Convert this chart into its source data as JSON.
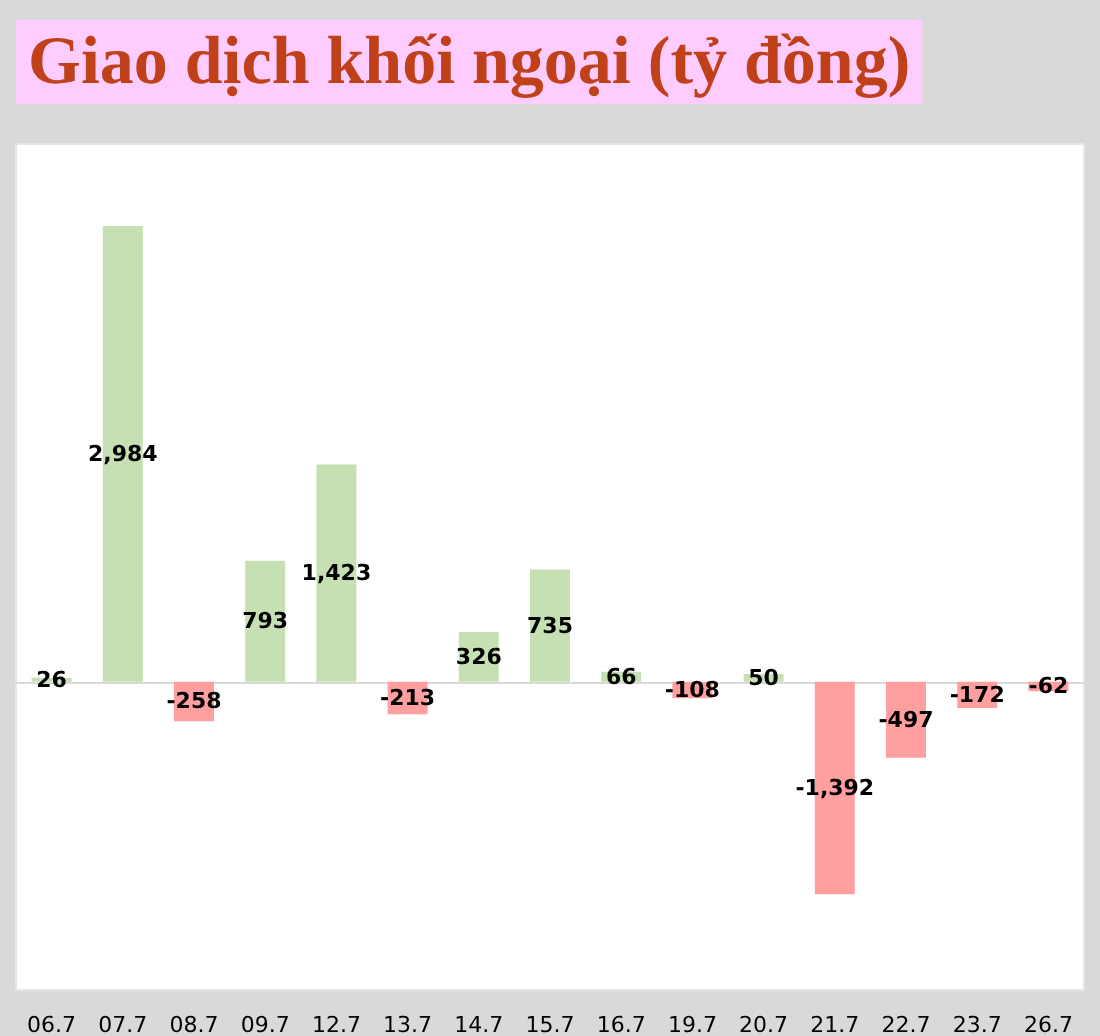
{
  "chart_data": {
    "type": "bar",
    "title": "Giao dịch khối ngoại (tỷ đồng)",
    "categories": [
      "06.7",
      "07.7",
      "08.7",
      "09.7",
      "12.7",
      "13.7",
      "14.7",
      "15.7",
      "16.7",
      "19.7",
      "20.7",
      "21.7",
      "22.7",
      "23.7",
      "26.7"
    ],
    "values": [
      26,
      2984,
      -258,
      793,
      1423,
      -213,
      326,
      735,
      66,
      -108,
      50,
      -1392,
      -497,
      -172,
      -62
    ],
    "value_labels": [
      "26",
      "2,984",
      "-258",
      "793",
      "1,423",
      "-213",
      "326",
      "735",
      "66",
      "-108",
      "50",
      "-1,392",
      "-497",
      "-172",
      "-62"
    ],
    "colors": [
      "#c6e0b4",
      "#c6e0b4",
      "#ff9f9f",
      "#c6e0b4",
      "#c6e0b4",
      "#ff9f9f",
      "#c6e0b4",
      "#c6e0b4",
      "#c6e0b4",
      "#ff9f9f",
      "#c6e0b4",
      "#ff9f9f",
      "#ff9f9f",
      "#ff9f9f",
      "#ff9f9f"
    ],
    "grid": false
  }
}
